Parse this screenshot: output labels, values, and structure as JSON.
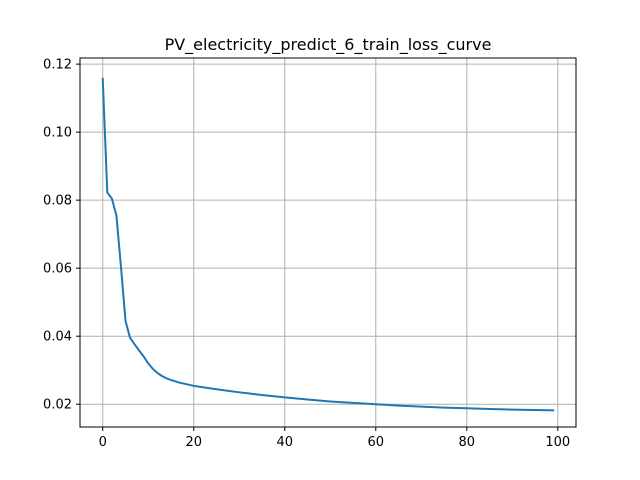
{
  "chart_data": {
    "type": "line",
    "title": "PV_electricity_predict_6_train_loss_curve",
    "xlabel": "",
    "ylabel": "",
    "xlim": [
      -5,
      104
    ],
    "ylim": [
      0.0133,
      0.1218
    ],
    "grid": true,
    "x_ticks": [
      {
        "value": 0,
        "label": "0"
      },
      {
        "value": 20,
        "label": "20"
      },
      {
        "value": 40,
        "label": "40"
      },
      {
        "value": 60,
        "label": "60"
      },
      {
        "value": 80,
        "label": "80"
      },
      {
        "value": 100,
        "label": "100"
      }
    ],
    "y_ticks": [
      {
        "value": 0.02,
        "label": "0.02"
      },
      {
        "value": 0.04,
        "label": "0.04"
      },
      {
        "value": 0.06,
        "label": "0.06"
      },
      {
        "value": 0.08,
        "label": "0.08"
      },
      {
        "value": 0.1,
        "label": "0.10"
      },
      {
        "value": 0.12,
        "label": "0.12"
      }
    ],
    "series": [
      {
        "color": "#1f77b4",
        "x": [
          0,
          1,
          2,
          3,
          4,
          5,
          6,
          7,
          8,
          9,
          10,
          11,
          12,
          13,
          14,
          15,
          16,
          17,
          18,
          19,
          20,
          22,
          25,
          30,
          35,
          40,
          45,
          50,
          55,
          60,
          65,
          70,
          75,
          80,
          85,
          90,
          95,
          99
        ],
        "y": [
          0.1157,
          0.0822,
          0.0805,
          0.0755,
          0.0605,
          0.0445,
          0.0395,
          0.0376,
          0.0358,
          0.034,
          0.032,
          0.0304,
          0.0292,
          0.0283,
          0.0276,
          0.0271,
          0.0267,
          0.0263,
          0.026,
          0.0257,
          0.0254,
          0.025,
          0.0244,
          0.0235,
          0.0227,
          0.022,
          0.0214,
          0.0208,
          0.0204,
          0.02,
          0.0196,
          0.0193,
          0.019,
          0.0188,
          0.0186,
          0.0184,
          0.0183,
          0.0182
        ]
      }
    ]
  }
}
